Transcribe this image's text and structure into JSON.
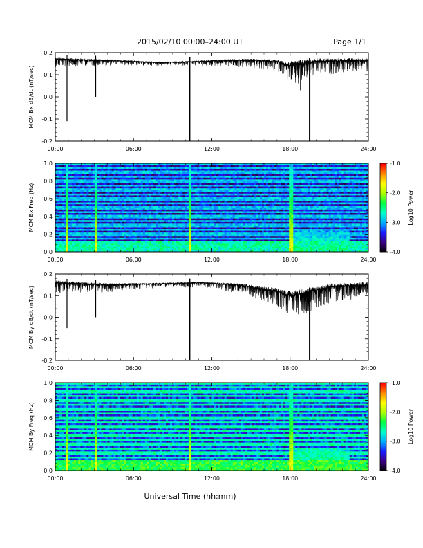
{
  "header": {
    "title": "2015/02/10   00:00–24:00 UT",
    "page": "Page 1/1"
  },
  "footer": {
    "xlabel": "Universal Time (hh:mm)"
  },
  "colors": {
    "trace": "#000000",
    "colormap": [
      "#000000",
      "#3a0080",
      "#1a1aff",
      "#00aaff",
      "#00ffcc",
      "#00ff44",
      "#aaff00",
      "#ffff00",
      "#ff8800",
      "#ff0000"
    ]
  },
  "chart_data": [
    {
      "type": "line",
      "ylabel": "MCM Bx dB/dt (nT/sec)",
      "xlim": [
        0,
        24
      ],
      "ylim": [
        -0.2,
        0.2
      ],
      "x_ticks": [
        "00:00",
        "06:00",
        "12:00",
        "18:00",
        "24:00"
      ],
      "y_ticks": [
        "0.2",
        "0.1",
        "0.0",
        "-0.1",
        "-0.2"
      ],
      "baseline": [
        [
          0,
          0.17
        ],
        [
          4,
          0.165
        ],
        [
          8,
          0.155
        ],
        [
          11,
          0.16
        ],
        [
          13,
          0.165
        ],
        [
          15,
          0.165
        ],
        [
          17,
          0.16
        ],
        [
          18,
          0.14
        ],
        [
          19,
          0.15
        ],
        [
          20,
          0.16
        ],
        [
          24,
          0.165
        ]
      ],
      "noise": [
        [
          0,
          0.03
        ],
        [
          4,
          0.02
        ],
        [
          8,
          0.012
        ],
        [
          12,
          0.02
        ],
        [
          15,
          0.03
        ],
        [
          17.5,
          0.04
        ],
        [
          18.5,
          0.09
        ],
        [
          19.5,
          0.06
        ],
        [
          21,
          0.05
        ],
        [
          24,
          0.04
        ]
      ],
      "spikes": [
        [
          0.9,
          -0.11
        ],
        [
          3.1,
          0.0
        ],
        [
          10.3,
          -0.2
        ],
        [
          18.1,
          0.08
        ],
        [
          18.8,
          0.03
        ],
        [
          19.5,
          -0.2
        ]
      ]
    },
    {
      "type": "heatmap",
      "ylabel": "MCM Bx Freq (Hz)",
      "xlim": [
        0,
        24
      ],
      "ylim": [
        0.0,
        1.0
      ],
      "x_ticks": [
        "00:00",
        "06:00",
        "12:00",
        "18:00",
        "24:00"
      ],
      "y_ticks": [
        "1.0",
        "0.8",
        "0.6",
        "0.4",
        "0.2",
        "0.0"
      ],
      "colorbar": {
        "label": "Log10 Power",
        "ticks": [
          "-1.0",
          "-2.0",
          "-3.0",
          "-4.0"
        ],
        "range": [
          -4.0,
          -1.0
        ]
      },
      "harmonic_freqs": [
        0.05,
        0.1,
        0.15,
        0.2,
        0.25,
        0.3,
        0.35,
        0.4,
        0.45,
        0.5,
        0.55,
        0.6,
        0.65,
        0.7,
        0.75,
        0.8,
        0.85,
        0.9,
        0.95,
        1.0
      ],
      "harmonic_level": -2.9,
      "background_level": -3.5,
      "low_freq_level": -2.6,
      "event_times": [
        0.9,
        3.1,
        10.3,
        18.1
      ],
      "event_level": -1.7,
      "active_intervals": [
        [
          18.0,
          22.5,
          -2.5
        ]
      ]
    },
    {
      "type": "line",
      "ylabel": "MCM By dB/dt (nT/sec)",
      "xlim": [
        0,
        24
      ],
      "ylim": [
        -0.2,
        0.2
      ],
      "x_ticks": [
        "00:00",
        "06:00",
        "12:00",
        "18:00",
        "24:00"
      ],
      "y_ticks": [
        "0.2",
        "0.1",
        "0.0",
        "-0.1",
        "-0.2"
      ],
      "baseline": [
        [
          0,
          0.16
        ],
        [
          4,
          0.15
        ],
        [
          8,
          0.155
        ],
        [
          11,
          0.16
        ],
        [
          14,
          0.15
        ],
        [
          16,
          0.13
        ],
        [
          17,
          0.12
        ],
        [
          18,
          0.1
        ],
        [
          19,
          0.11
        ],
        [
          21,
          0.14
        ],
        [
          24,
          0.15
        ]
      ],
      "noise": [
        [
          0,
          0.04
        ],
        [
          4,
          0.03
        ],
        [
          8,
          0.015
        ],
        [
          12,
          0.02
        ],
        [
          15,
          0.04
        ],
        [
          17,
          0.06
        ],
        [
          18.5,
          0.09
        ],
        [
          20,
          0.07
        ],
        [
          24,
          0.05
        ]
      ],
      "spikes": [
        [
          0.9,
          -0.05
        ],
        [
          3.1,
          0.0
        ],
        [
          10.3,
          -0.2
        ],
        [
          19.5,
          -0.2
        ]
      ]
    },
    {
      "type": "heatmap",
      "ylabel": "MCM By Freq (Hz)",
      "xlim": [
        0,
        24
      ],
      "ylim": [
        0.0,
        1.0
      ],
      "x_ticks": [
        "00:00",
        "06:00",
        "12:00",
        "18:00",
        "24:00"
      ],
      "y_ticks": [
        "1.0",
        "0.8",
        "0.6",
        "0.4",
        "0.2",
        "0.0"
      ],
      "colorbar": {
        "label": "Log10 Power",
        "ticks": [
          "-1.0",
          "-2.0",
          "-3.0",
          "-4.0"
        ],
        "range": [
          -4.0,
          -1.0
        ]
      },
      "harmonic_freqs": [
        0.05,
        0.1,
        0.15,
        0.2,
        0.25,
        0.3,
        0.35,
        0.4,
        0.45,
        0.5,
        0.55,
        0.6,
        0.65,
        0.7,
        0.75,
        0.8,
        0.85,
        0.9,
        0.95,
        1.0
      ],
      "harmonic_level": -2.6,
      "background_level": -3.3,
      "low_freq_level": -2.3,
      "event_times": [
        0.9,
        3.1,
        10.3,
        18.1
      ],
      "event_level": -1.7,
      "active_intervals": [
        [
          18.0,
          22.5,
          -2.3
        ]
      ]
    }
  ]
}
